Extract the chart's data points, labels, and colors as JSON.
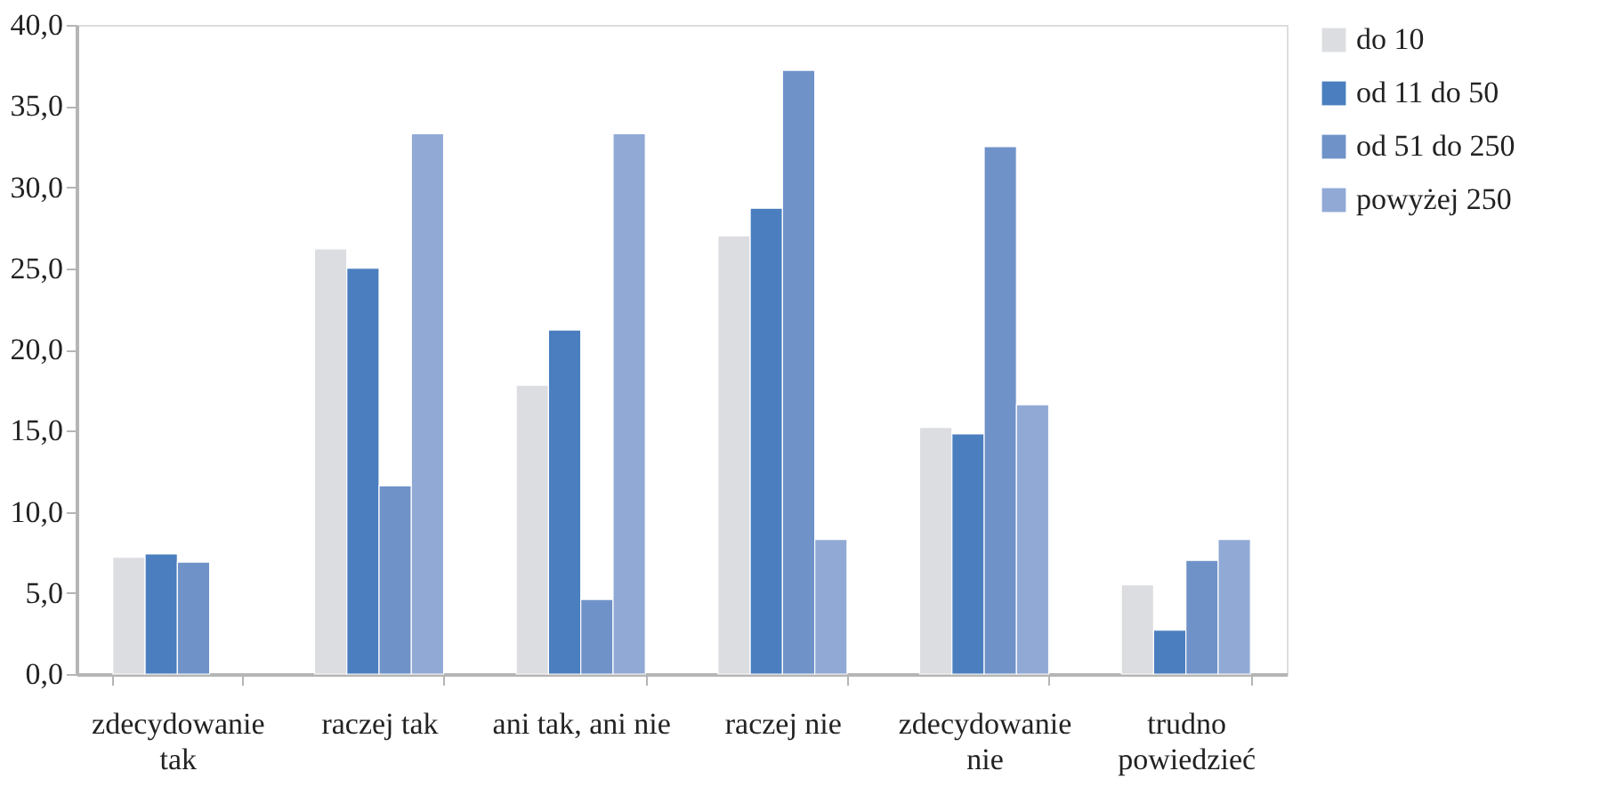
{
  "chart_data": {
    "type": "bar",
    "categories": [
      "zdecydowanie tak",
      "raczej tak",
      "ani tak, ani nie",
      "raczej nie",
      "zdecydowanie nie",
      "trudno powiedzieć"
    ],
    "series": [
      {
        "name": "do 10",
        "color": "#dcdde0",
        "values": [
          7.2,
          26.2,
          17.8,
          27.0,
          15.2,
          5.5
        ]
      },
      {
        "name": "od 11 do 50",
        "color": "#4a7ebf",
        "values": [
          7.4,
          25.0,
          21.2,
          28.7,
          14.8,
          2.7
        ]
      },
      {
        "name": "od 51 do 250",
        "color": "#6f92c8",
        "values": [
          6.9,
          11.6,
          4.6,
          37.2,
          32.5,
          7.0
        ]
      },
      {
        "name": "powyżej 250",
        "color": "#91a9d5",
        "values": [
          null,
          33.3,
          33.3,
          8.3,
          16.6,
          8.3
        ]
      }
    ],
    "ylim": [
      0,
      40
    ],
    "yticks": [
      {
        "value": 0,
        "label": "0,0"
      },
      {
        "value": 5,
        "label": "5,0"
      },
      {
        "value": 10,
        "label": "10,0"
      },
      {
        "value": 15,
        "label": "15,0"
      },
      {
        "value": 20,
        "label": "20,0"
      },
      {
        "value": 25,
        "label": "25,0"
      },
      {
        "value": 30,
        "label": "30,0"
      },
      {
        "value": 35,
        "label": "35,0"
      },
      {
        "value": 40,
        "label": "40,0"
      }
    ],
    "grid": false,
    "legend": "right"
  }
}
